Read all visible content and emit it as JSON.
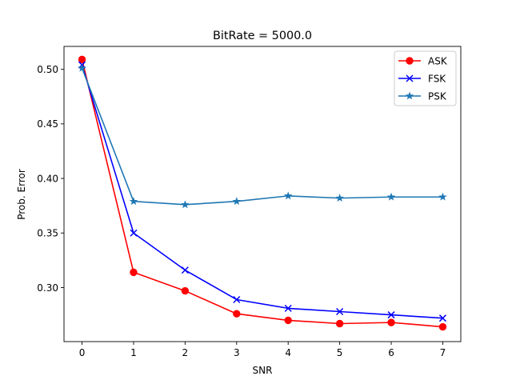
{
  "chart_data": {
    "type": "line",
    "title": "BitRate = 5000.0",
    "xlabel": "SNR",
    "ylabel": "Prob. Error",
    "x": [
      0,
      1,
      2,
      3,
      4,
      5,
      6,
      7
    ],
    "xlim": [
      -0.35,
      7.35
    ],
    "ylim": [
      0.2505,
      0.521
    ],
    "xticks": [
      "0",
      "1",
      "2",
      "3",
      "4",
      "5",
      "6",
      "7"
    ],
    "yticks": [
      {
        "value": 0.3,
        "label": "0.30"
      },
      {
        "value": 0.35,
        "label": "0.35"
      },
      {
        "value": 0.4,
        "label": "0.40"
      },
      {
        "value": 0.45,
        "label": "0.45"
      },
      {
        "value": 0.5,
        "label": "0.50"
      }
    ],
    "grid": false,
    "legend_position": "top-right",
    "series": [
      {
        "name": "ASK",
        "color": "#ff0000",
        "marker": "circle",
        "values": [
          0.509,
          0.314,
          0.297,
          0.276,
          0.27,
          0.267,
          0.268,
          0.264
        ]
      },
      {
        "name": "FSK",
        "color": "#0000ff",
        "marker": "x",
        "values": [
          0.504,
          0.35,
          0.316,
          0.289,
          0.281,
          0.278,
          0.275,
          0.272
        ]
      },
      {
        "name": "PSK",
        "color": "#1f77b4",
        "marker": "star",
        "values": [
          0.501,
          0.379,
          0.376,
          0.379,
          0.384,
          0.382,
          0.383,
          0.383
        ]
      }
    ]
  }
}
